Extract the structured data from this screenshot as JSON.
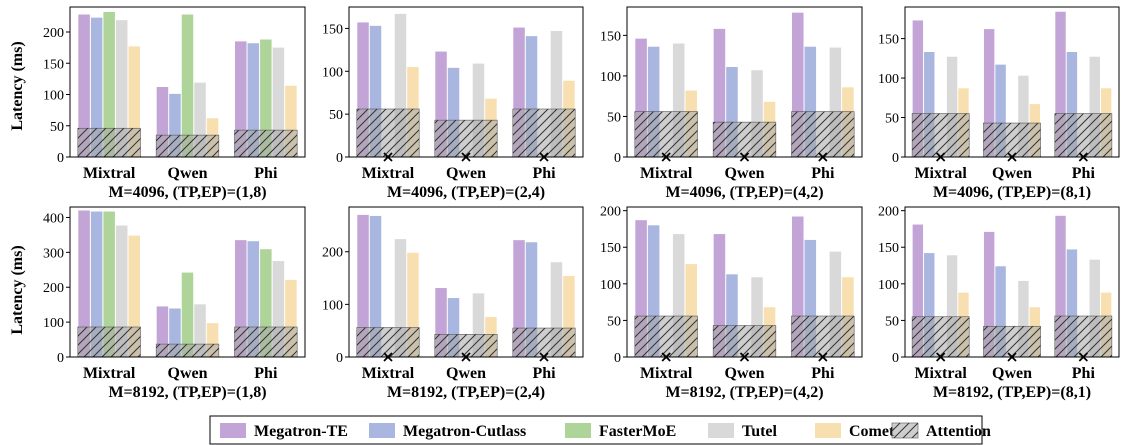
{
  "legend": {
    "series": [
      {
        "name": "Megatron-TE",
        "color": "#c3a4d6"
      },
      {
        "name": "Megatron-Cutlass",
        "color": "#a8b6e0"
      },
      {
        "name": "FasterMoE",
        "color": "#afd49a"
      },
      {
        "name": "Tutel",
        "color": "#d9d9d9"
      },
      {
        "name": "Comet",
        "color": "#f8dfb0"
      }
    ],
    "attention": {
      "name": "Attention",
      "color": "#a6a6a6"
    },
    "placement": "bottom"
  },
  "ylabel": "Latency (ms)",
  "chart_data": [
    {
      "type": "bar",
      "title": "M=4096, (TP,EP)=(1,8)",
      "categories": [
        "Mixtral",
        "Qwen",
        "Phi"
      ],
      "ylim": [
        0,
        240
      ],
      "yticks": [
        0,
        50,
        100,
        150,
        200
      ],
      "series": [
        {
          "name": "Megatron-TE",
          "values": [
            228,
            112,
            185
          ]
        },
        {
          "name": "Megatron-Cutlass",
          "values": [
            223,
            101,
            182
          ]
        },
        {
          "name": "FasterMoE",
          "values": [
            232,
            228,
            188
          ]
        },
        {
          "name": "Tutel",
          "values": [
            219,
            119,
            175
          ]
        },
        {
          "name": "Comet",
          "values": [
            177,
            62,
            114
          ]
        }
      ],
      "attention": [
        46,
        35,
        43
      ],
      "failed": []
    },
    {
      "type": "bar",
      "title": "M=4096, (TP,EP)=(2,4)",
      "categories": [
        "Mixtral",
        "Qwen",
        "Phi"
      ],
      "ylim": [
        0,
        175
      ],
      "yticks": [
        0,
        50,
        100,
        150
      ],
      "series": [
        {
          "name": "Megatron-TE",
          "values": [
            157,
            123,
            151
          ]
        },
        {
          "name": "Megatron-Cutlass",
          "values": [
            153,
            104,
            141
          ]
        },
        {
          "name": "FasterMoE",
          "values": [
            null,
            null,
            null
          ]
        },
        {
          "name": "Tutel",
          "values": [
            167,
            109,
            147
          ]
        },
        {
          "name": "Comet",
          "values": [
            105,
            68,
            89
          ]
        }
      ],
      "attention": [
        56,
        43,
        56
      ],
      "failed": [
        "FasterMoE"
      ]
    },
    {
      "type": "bar",
      "title": "M=4096, (TP,EP)=(4,2)",
      "categories": [
        "Mixtral",
        "Qwen",
        "Phi"
      ],
      "ylim": [
        0,
        185
      ],
      "yticks": [
        0,
        50,
        100,
        150
      ],
      "series": [
        {
          "name": "Megatron-TE",
          "values": [
            146,
            158,
            178
          ]
        },
        {
          "name": "Megatron-Cutlass",
          "values": [
            136,
            111,
            136
          ]
        },
        {
          "name": "FasterMoE",
          "values": [
            null,
            null,
            null
          ]
        },
        {
          "name": "Tutel",
          "values": [
            140,
            107,
            135
          ]
        },
        {
          "name": "Comet",
          "values": [
            82,
            68,
            86
          ]
        }
      ],
      "attention": [
        56,
        43,
        56
      ],
      "failed": [
        "FasterMoE"
      ]
    },
    {
      "type": "bar",
      "title": "M=4096, (TP,EP)=(8,1)",
      "categories": [
        "Mixtral",
        "Qwen",
        "Phi"
      ],
      "ylim": [
        0,
        190
      ],
      "yticks": [
        0,
        50,
        100,
        150
      ],
      "series": [
        {
          "name": "Megatron-TE",
          "values": [
            173,
            162,
            184
          ]
        },
        {
          "name": "Megatron-Cutlass",
          "values": [
            133,
            117,
            133
          ]
        },
        {
          "name": "FasterMoE",
          "values": [
            null,
            null,
            null
          ]
        },
        {
          "name": "Tutel",
          "values": [
            127,
            103,
            127
          ]
        },
        {
          "name": "Comet",
          "values": [
            87,
            67,
            87
          ]
        }
      ],
      "attention": [
        55,
        43,
        55
      ],
      "failed": [
        "FasterMoE"
      ]
    },
    {
      "type": "bar",
      "title": "M=8192, (TP,EP)=(1,8)",
      "categories": [
        "Mixtral",
        "Qwen",
        "Phi"
      ],
      "ylim": [
        0,
        430
      ],
      "yticks": [
        0,
        100,
        200,
        300,
        400
      ],
      "series": [
        {
          "name": "Megatron-TE",
          "values": [
            420,
            145,
            335
          ]
        },
        {
          "name": "Megatron-Cutlass",
          "values": [
            417,
            139,
            332
          ]
        },
        {
          "name": "FasterMoE",
          "values": [
            417,
            242,
            309
          ]
        },
        {
          "name": "Tutel",
          "values": [
            377,
            151,
            275
          ]
        },
        {
          "name": "Comet",
          "values": [
            348,
            97,
            221
          ]
        }
      ],
      "attention": [
        86,
        37,
        86
      ],
      "failed": []
    },
    {
      "type": "bar",
      "title": "M=8192, (TP,EP)=(2,4)",
      "categories": [
        "Mixtral",
        "Qwen",
        "Phi"
      ],
      "ylim": [
        0,
        285
      ],
      "yticks": [
        0,
        100,
        200
      ],
      "series": [
        {
          "name": "Megatron-TE",
          "values": [
            270,
            131,
            222
          ]
        },
        {
          "name": "Megatron-Cutlass",
          "values": [
            268,
            112,
            218
          ]
        },
        {
          "name": "FasterMoE",
          "values": [
            null,
            null,
            null
          ]
        },
        {
          "name": "Tutel",
          "values": [
            224,
            121,
            180
          ]
        },
        {
          "name": "Comet",
          "values": [
            198,
            76,
            154
          ]
        }
      ],
      "attention": [
        56,
        43,
        55
      ],
      "failed": [
        "FasterMoE"
      ]
    },
    {
      "type": "bar",
      "title": "M=8192, (TP,EP)=(4,2)",
      "categories": [
        "Mixtral",
        "Qwen",
        "Phi"
      ],
      "ylim": [
        0,
        205
      ],
      "yticks": [
        0,
        50,
        100,
        150,
        200
      ],
      "series": [
        {
          "name": "Megatron-TE",
          "values": [
            187,
            168,
            192
          ]
        },
        {
          "name": "Megatron-Cutlass",
          "values": [
            180,
            113,
            160
          ]
        },
        {
          "name": "FasterMoE",
          "values": [
            null,
            null,
            null
          ]
        },
        {
          "name": "Tutel",
          "values": [
            168,
            109,
            144
          ]
        },
        {
          "name": "Comet",
          "values": [
            127,
            68,
            109
          ]
        }
      ],
      "attention": [
        56,
        43,
        56
      ],
      "failed": [
        "FasterMoE"
      ]
    },
    {
      "type": "bar",
      "title": "M=8192, (TP,EP)=(8,1)",
      "categories": [
        "Mixtral",
        "Qwen",
        "Phi"
      ],
      "ylim": [
        0,
        205
      ],
      "yticks": [
        0,
        50,
        100,
        150,
        200
      ],
      "series": [
        {
          "name": "Megatron-TE",
          "values": [
            181,
            171,
            193
          ]
        },
        {
          "name": "Megatron-Cutlass",
          "values": [
            142,
            124,
            147
          ]
        },
        {
          "name": "FasterMoE",
          "values": [
            null,
            null,
            null
          ]
        },
        {
          "name": "Tutel",
          "values": [
            139,
            104,
            133
          ]
        },
        {
          "name": "Comet",
          "values": [
            88,
            68,
            88
          ]
        }
      ],
      "attention": [
        55,
        42,
        56
      ],
      "failed": [
        "FasterMoE"
      ]
    }
  ]
}
